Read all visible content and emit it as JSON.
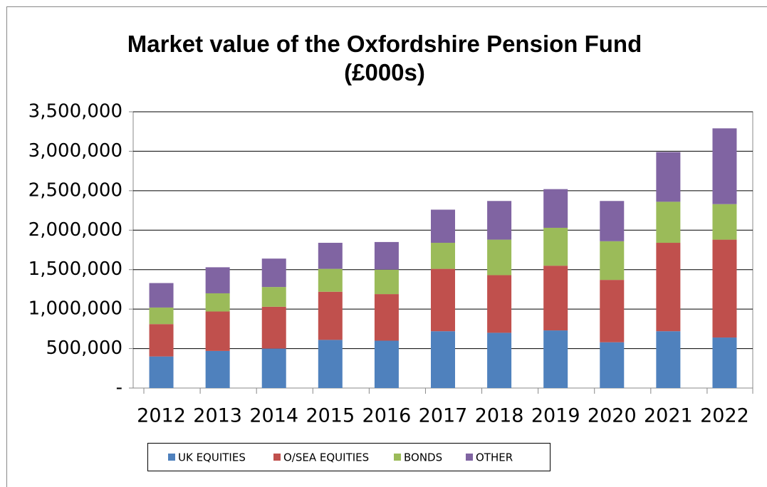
{
  "chart_data": {
    "type": "stacked_bar",
    "title": "Market value of the Oxfordshire Pension Fund (£000s)",
    "categories": [
      "2012",
      "2013",
      "2014",
      "2015",
      "2016",
      "2017",
      "2018",
      "2019",
      "2020",
      "2021",
      "2022"
    ],
    "series": [
      {
        "name": "UK EQUITIES",
        "color": "#4f81bd",
        "values": [
          400000,
          470000,
          500000,
          610000,
          600000,
          720000,
          700000,
          730000,
          580000,
          720000,
          640000
        ]
      },
      {
        "name": "O/SEA EQUITIES",
        "color": "#c0504d",
        "values": [
          410000,
          500000,
          530000,
          610000,
          590000,
          790000,
          730000,
          820000,
          790000,
          1120000,
          1240000
        ]
      },
      {
        "name": "BONDS",
        "color": "#9bbb59",
        "values": [
          210000,
          230000,
          250000,
          290000,
          310000,
          330000,
          450000,
          480000,
          490000,
          520000,
          450000
        ]
      },
      {
        "name": "OTHER",
        "color": "#8064a2",
        "values": [
          310000,
          330000,
          360000,
          330000,
          350000,
          420000,
          490000,
          490000,
          510000,
          630000,
          960000
        ]
      }
    ],
    "ylim": [
      0,
      3500000
    ],
    "yticks": [
      {
        "value": 0,
        "label": "-"
      },
      {
        "value": 500000,
        "label": "500,000"
      },
      {
        "value": 1000000,
        "label": "1,000,000"
      },
      {
        "value": 1500000,
        "label": "1,500,000"
      },
      {
        "value": 2000000,
        "label": "2,000,000"
      },
      {
        "value": 2500000,
        "label": "2,500,000"
      },
      {
        "value": 3000000,
        "label": "3,000,000"
      },
      {
        "value": 3500000,
        "label": "3,500,000"
      }
    ],
    "grid": true,
    "legend": "bottom"
  }
}
